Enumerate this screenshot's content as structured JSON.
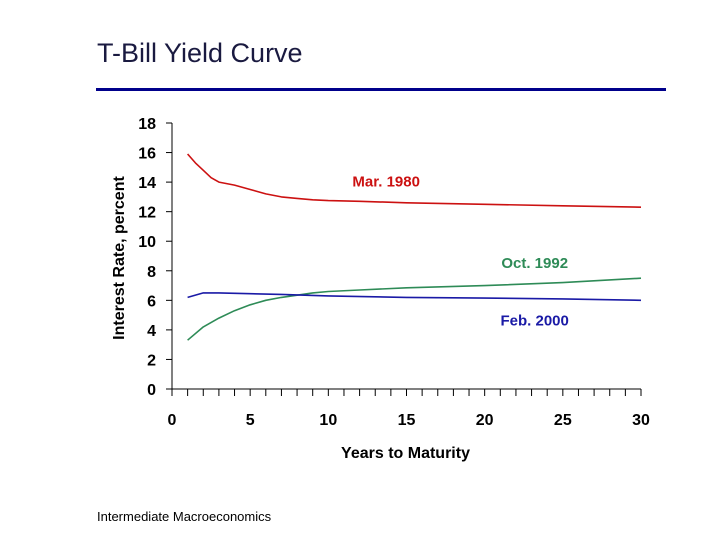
{
  "slide": {
    "title": "T-Bill Yield Curve",
    "footer": "Intermediate Macroeconomics"
  },
  "colors": {
    "title_rule": "#00008b"
  },
  "chart_data": {
    "type": "line",
    "title": "",
    "xlabel": "Years to Maturity",
    "ylabel": "Interest Rate, percent",
    "xlim": [
      0,
      30
    ],
    "ylim": [
      0,
      18
    ],
    "xticks": [
      0,
      5,
      10,
      15,
      20,
      25,
      30
    ],
    "yticks": [
      0,
      2,
      4,
      6,
      8,
      10,
      12,
      14,
      16,
      18
    ],
    "grid": false,
    "series": [
      {
        "name": "Mar. 1980",
        "color": "#cc1111",
        "x": [
          1,
          1.5,
          2,
          2.5,
          3,
          4,
          5,
          6,
          7,
          8,
          9,
          10,
          12,
          15,
          20,
          25,
          30
        ],
        "y": [
          15.9,
          15.3,
          14.8,
          14.3,
          14.0,
          13.8,
          13.5,
          13.2,
          13.0,
          12.9,
          12.8,
          12.75,
          12.7,
          12.6,
          12.5,
          12.4,
          12.3
        ]
      },
      {
        "name": "Oct. 1992",
        "color": "#2e8b57",
        "x": [
          1,
          2,
          3,
          4,
          5,
          6,
          7,
          8,
          9,
          10,
          12,
          15,
          20,
          25,
          30
        ],
        "y": [
          3.3,
          4.2,
          4.8,
          5.3,
          5.7,
          6.0,
          6.2,
          6.35,
          6.5,
          6.6,
          6.7,
          6.85,
          7.0,
          7.2,
          7.5
        ]
      },
      {
        "name": "Feb. 2000",
        "color": "#1a1aa6",
        "x": [
          1,
          2,
          3,
          5,
          7,
          10,
          15,
          20,
          25,
          30
        ],
        "y": [
          6.2,
          6.5,
          6.5,
          6.45,
          6.4,
          6.3,
          6.2,
          6.15,
          6.1,
          6.0
        ]
      }
    ],
    "annotations": [
      {
        "text": "Mar. 1980",
        "series": 0,
        "x": 13.7,
        "y": 13.7
      },
      {
        "text": "Oct. 1992",
        "series": 1,
        "x": 23.2,
        "y": 8.2
      },
      {
        "text": "Feb. 2000",
        "series": 2,
        "x": 23.2,
        "y": 4.3
      }
    ]
  }
}
